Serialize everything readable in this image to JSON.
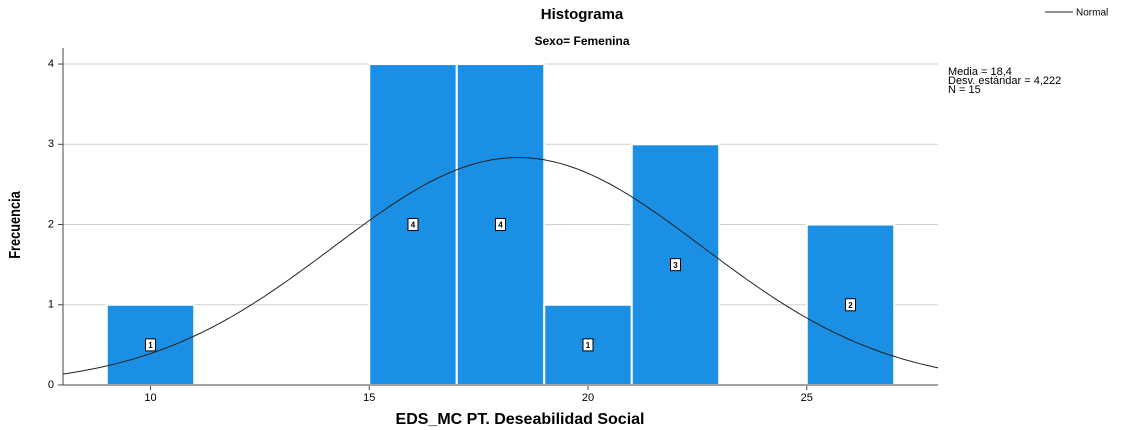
{
  "chart_data": {
    "type": "histogram",
    "title": "Histograma",
    "subtitle": "Sexo= Femenina",
    "x_label": "EDS_MC PT. Deseabilidad Social",
    "y_label": "Frecuencia",
    "bins": [
      9,
      11,
      13,
      15,
      17,
      19,
      21,
      23,
      25,
      27
    ],
    "counts": [
      1,
      0,
      0,
      4,
      4,
      1,
      3,
      0,
      2
    ],
    "color": "#1a8fe3",
    "xlim": [
      8,
      28
    ],
    "xticks": [
      10,
      15,
      20,
      25
    ],
    "ylim": [
      0,
      4.2
    ],
    "yticks": [
      0,
      1,
      2,
      3,
      4
    ],
    "grid": true,
    "curve": {
      "name": "Normal",
      "color": "#222222"
    },
    "stats": [
      {
        "label": "Media = 18,4",
        "value": 18.4
      },
      {
        "label": "Desv. estándar = 4,222",
        "value": 4.222
      },
      {
        "label": "N = 15",
        "value": 15
      }
    ],
    "legend": "top-right"
  }
}
